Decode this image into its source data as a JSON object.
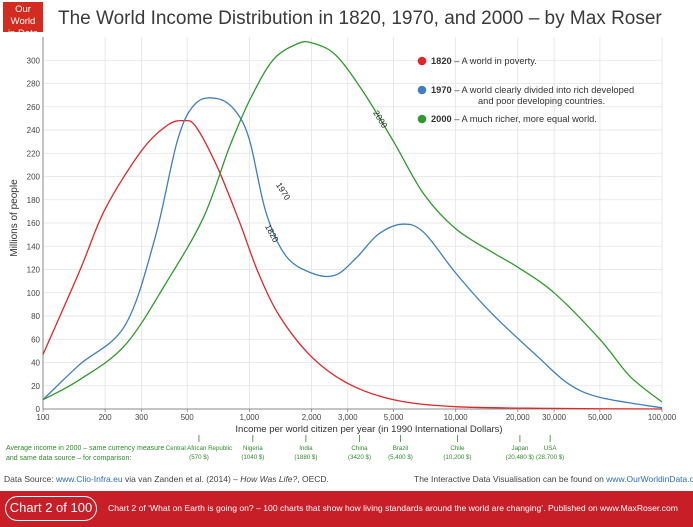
{
  "logo": {
    "line1": "Our World",
    "line2": "in Data"
  },
  "chart_data": {
    "type": "line",
    "title": "The World Income Distribution in 1820, 1970, and 2000 – by Max Roser",
    "xlabel": "Income per world citizen per year (in 1990 International Dollars)",
    "ylabel": "Millions of people",
    "xscale": "log",
    "xlim": [
      100,
      100000
    ],
    "ylim": [
      0,
      320
    ],
    "x_ticks": [
      {
        "value": 100,
        "label": "100"
      },
      {
        "value": 200,
        "label": "200"
      },
      {
        "value": 300,
        "label": "300"
      },
      {
        "value": 500,
        "label": "500"
      },
      {
        "value": 1000,
        "label": "1,000"
      },
      {
        "value": 2000,
        "label": "2,000"
      },
      {
        "value": 3000,
        "label": "3,000"
      },
      {
        "value": 5000,
        "label": "5,000"
      },
      {
        "value": 10000,
        "label": "10,000"
      },
      {
        "value": 20000,
        "label": "20,000"
      },
      {
        "value": 30000,
        "label": "30,000"
      },
      {
        "value": 50000,
        "label": "50,000"
      },
      {
        "value": 100000,
        "label": "100,000"
      }
    ],
    "y_ticks": [
      0,
      20,
      40,
      60,
      80,
      100,
      120,
      140,
      160,
      180,
      200,
      220,
      240,
      260,
      280,
      300
    ],
    "grid": true,
    "series": [
      {
        "name": "1820",
        "color": "#e0262a",
        "curve_label": "1820",
        "legend_year": "1820",
        "legend_text": " – A world in poverty.",
        "legend_text2": "",
        "points": [
          [
            100,
            47
          ],
          [
            150,
            118
          ],
          [
            200,
            172
          ],
          [
            300,
            222
          ],
          [
            400,
            244
          ],
          [
            480,
            248
          ],
          [
            550,
            243
          ],
          [
            700,
            208
          ],
          [
            900,
            160
          ],
          [
            1100,
            118
          ],
          [
            1400,
            80
          ],
          [
            2000,
            45
          ],
          [
            3000,
            22
          ],
          [
            5000,
            8
          ],
          [
            10000,
            2
          ],
          [
            30000,
            0.5
          ],
          [
            100000,
            0
          ]
        ]
      },
      {
        "name": "1970",
        "color": "#3d7fc1",
        "curve_label": "1970",
        "legend_year": "1970",
        "legend_text": " – A world clearly divided into rich developed",
        "legend_text2": "and poor developing countries.",
        "points": [
          [
            100,
            8
          ],
          [
            150,
            38
          ],
          [
            250,
            72
          ],
          [
            350,
            148
          ],
          [
            450,
            232
          ],
          [
            550,
            263
          ],
          [
            700,
            267
          ],
          [
            850,
            257
          ],
          [
            1000,
            232
          ],
          [
            1200,
            170
          ],
          [
            1500,
            132
          ],
          [
            2000,
            117
          ],
          [
            2600,
            115
          ],
          [
            3300,
            130
          ],
          [
            4200,
            150
          ],
          [
            5500,
            159
          ],
          [
            7000,
            152
          ],
          [
            10000,
            117
          ],
          [
            15000,
            82
          ],
          [
            25000,
            45
          ],
          [
            35000,
            22
          ],
          [
            50000,
            10
          ],
          [
            100000,
            1
          ]
        ]
      },
      {
        "name": "2000",
        "color": "#2f9a2c",
        "curve_label": "2000",
        "legend_year": "2000",
        "legend_text": " – A much richer, more equal world.",
        "legend_text2": "",
        "points": [
          [
            100,
            8
          ],
          [
            150,
            25
          ],
          [
            250,
            55
          ],
          [
            400,
            110
          ],
          [
            600,
            165
          ],
          [
            800,
            225
          ],
          [
            1000,
            265
          ],
          [
            1300,
            300
          ],
          [
            1700,
            314
          ],
          [
            2000,
            315
          ],
          [
            2600,
            305
          ],
          [
            3500,
            275
          ],
          [
            5000,
            230
          ],
          [
            7000,
            185
          ],
          [
            10000,
            155
          ],
          [
            15000,
            135
          ],
          [
            20000,
            122
          ],
          [
            30000,
            100
          ],
          [
            50000,
            60
          ],
          [
            70000,
            28
          ],
          [
            100000,
            6
          ]
        ]
      }
    ],
    "comparison_label_line1": "Average income in 2000 – same currency measure",
    "comparison_label_line2": "and same data source – for comparison:",
    "comparison": [
      {
        "country": "Central African Republic",
        "income": 570,
        "value_label": "(570 $)"
      },
      {
        "country": "Nigeria",
        "income": 1040,
        "value_label": "(1040 $)"
      },
      {
        "country": "India",
        "income": 1880,
        "value_label": "(1880 $)"
      },
      {
        "country": "China",
        "income": 3420,
        "value_label": "(3420 $)"
      },
      {
        "country": "Brazil",
        "income": 5400,
        "value_label": "(5,400 $)"
      },
      {
        "country": "Chile",
        "income": 10200,
        "value_label": "(10,200 $)"
      },
      {
        "country": "Japan",
        "income": 20480,
        "value_label": "(20,480 $)"
      },
      {
        "country": "USA",
        "income": 28700,
        "value_label": "(28,700 $)"
      }
    ]
  },
  "source": {
    "prefix": "Data Source: ",
    "link": "www.Clio-Infra.eu",
    "middle": " via van Zanden et al. (2014) – ",
    "italic": "How Was Life?",
    "suffix": ", OECD."
  },
  "visualisation": {
    "text": "The Interactive Data Visualisation can be found on ",
    "link": "www.OurWorldinData.org"
  },
  "footer": {
    "badge": "Chart 2 of 100",
    "text": "Chart 2 of ‘What on Earth is going on? – 100 charts that show how living standards around the world are changing’. Published on www.MaxRoser.com"
  }
}
